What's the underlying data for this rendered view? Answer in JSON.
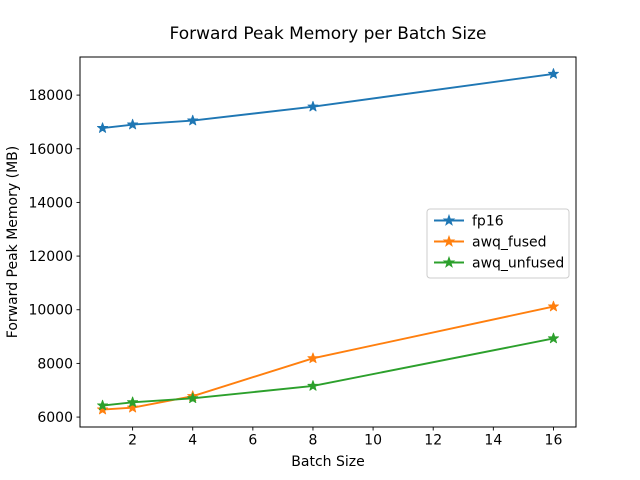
{
  "chart_data": {
    "type": "line",
    "title": "Forward Peak Memory per Batch Size",
    "xlabel": "Batch Size",
    "ylabel": "Forward Peak Memory (MB)",
    "x": [
      1,
      2,
      4,
      8,
      16
    ],
    "series": [
      {
        "name": "fp16",
        "color": "#1f77b4",
        "values": [
          16770,
          16900,
          17050,
          17570,
          18790
        ]
      },
      {
        "name": "awq_fused",
        "color": "#ff7f0e",
        "values": [
          6280,
          6350,
          6780,
          8190,
          10120
        ]
      },
      {
        "name": "awq_unfused",
        "color": "#2ca02c",
        "values": [
          6430,
          6550,
          6700,
          7160,
          8930
        ]
      }
    ],
    "marker": "star",
    "xticks": [
      2,
      4,
      6,
      8,
      10,
      12,
      14,
      16
    ],
    "yticks": [
      6000,
      8000,
      10000,
      12000,
      14000,
      16000,
      18000
    ],
    "xlim": [
      0.25,
      16.75
    ],
    "ylim": [
      5630,
      19420
    ],
    "grid": false,
    "legend_position": "center-right",
    "colors": {
      "spine": "#000000",
      "legend_edge": "#cccccc",
      "background": "#ffffff"
    }
  }
}
